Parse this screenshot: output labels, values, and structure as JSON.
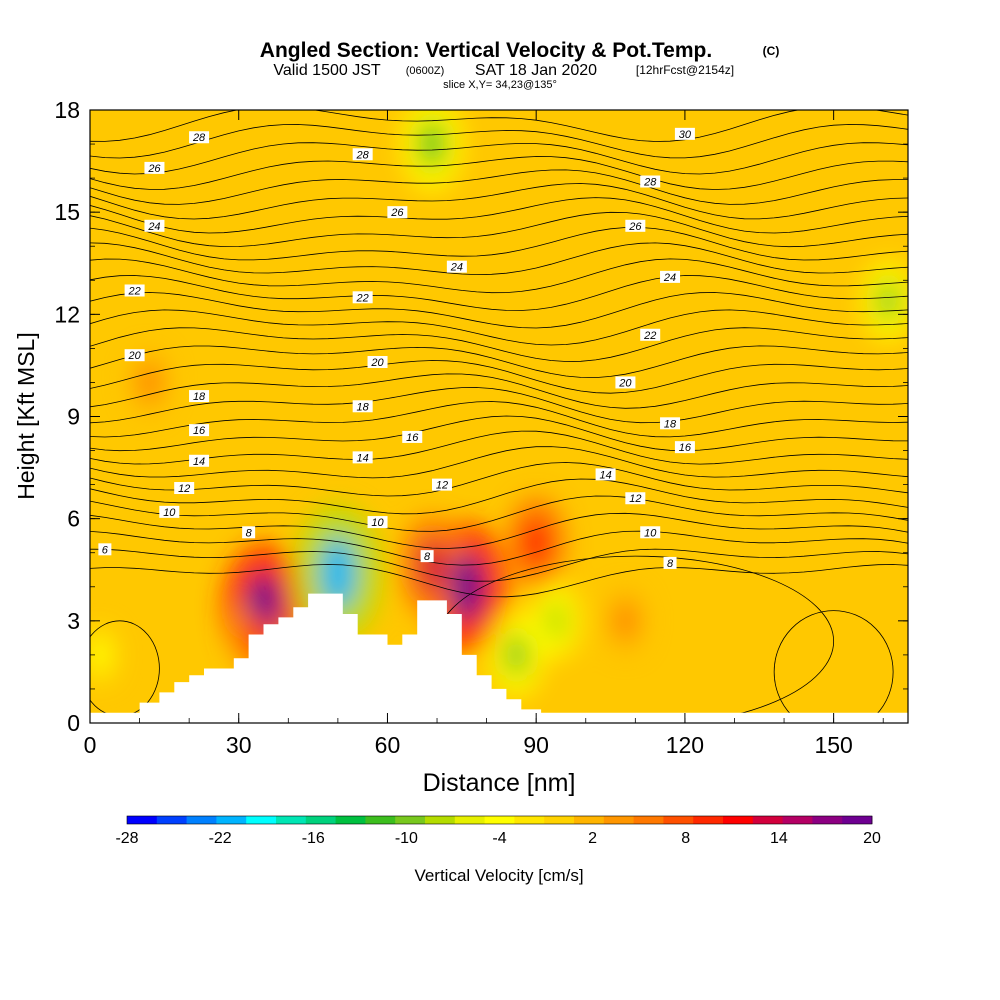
{
  "title": {
    "main": "Angled Section: Vertical Velocity & Pot.Temp.",
    "main_unit": "(C)",
    "valid_a": "Valid 1500 JST",
    "valid_b": "(0600Z)",
    "valid_c": "SAT 18 Jan 2020",
    "valid_d": "[12hrFcst@2154z]",
    "slice": "slice X,Y= 34,23@135°"
  },
  "chart_data": {
    "type": "heatmap",
    "title": "Angled Section: Vertical Velocity & Pot.Temp. (C)",
    "xlabel": "Distance [nm]",
    "ylabel": "Height [Kft MSL]",
    "xlim": [
      0,
      165
    ],
    "ylim": [
      0,
      18
    ],
    "x_ticks": [
      "0",
      "30",
      "60",
      "90",
      "120",
      "150"
    ],
    "y_ticks": [
      "0",
      "3",
      "6",
      "9",
      "12",
      "15",
      "18"
    ],
    "colorbar": {
      "label": "Vertical Velocity [cm/s]",
      "tick_labels": [
        "-28",
        "-22",
        "-16",
        "-10",
        "-4",
        "2",
        "8",
        "14",
        "20"
      ],
      "min": -28,
      "max": 20,
      "colors": [
        "#0000ff",
        "#0040ff",
        "#0080ff",
        "#00b4ff",
        "#00ffff",
        "#00e6b4",
        "#00d27d",
        "#00c040",
        "#3cbe1e",
        "#78c81e",
        "#b4dc00",
        "#e6f000",
        "#ffff00",
        "#ffe600",
        "#ffd200",
        "#ffb400",
        "#ff9600",
        "#ff7800",
        "#ff5000",
        "#ff2800",
        "#ff0000",
        "#d2003c",
        "#b40064",
        "#8c0082",
        "#6e0091"
      ]
    },
    "terrain_profile": {
      "x": [
        0,
        10,
        14,
        17,
        20,
        23,
        29,
        32,
        35,
        38,
        41,
        44,
        48,
        51,
        54,
        57,
        60,
        63,
        66,
        69,
        72,
        75,
        78,
        81,
        84,
        87,
        91,
        165
      ],
      "y": [
        0.3,
        0.6,
        0.9,
        1.2,
        1.4,
        1.6,
        1.9,
        2.6,
        2.9,
        3.1,
        3.4,
        3.8,
        3.8,
        3.2,
        2.6,
        2.6,
        2.3,
        2.6,
        3.6,
        3.6,
        3.2,
        2.0,
        1.4,
        1.0,
        0.7,
        0.4,
        0.3,
        0.3
      ]
    },
    "velocity_features": [
      {
        "x": 35,
        "y": 3.4,
        "value": 20
      },
      {
        "x": 76,
        "y": 4.0,
        "value": 20
      },
      {
        "x": 69,
        "y": 4.6,
        "value": 14
      },
      {
        "x": 90,
        "y": 5.3,
        "value": 12
      },
      {
        "x": 50,
        "y": 4.4,
        "value": -22
      },
      {
        "x": 69,
        "y": 17.0,
        "value": -12
      },
      {
        "x": 86,
        "y": 2.0,
        "value": -10
      },
      {
        "x": 94,
        "y": 3.0,
        "value": -8
      },
      {
        "x": 161,
        "y": 12.4,
        "value": -9
      },
      {
        "x": 2,
        "y": 2.0,
        "value": -4
      },
      {
        "x": 12,
        "y": 10.0,
        "value": 6
      },
      {
        "x": 34,
        "y": 2.6,
        "value": 10
      },
      {
        "x": 108,
        "y": 3.0,
        "value": 6
      }
    ],
    "isotherm_labels": [
      {
        "text": "28",
        "x": 22,
        "y": 17.2
      },
      {
        "text": "28",
        "x": 55,
        "y": 16.7
      },
      {
        "text": "30",
        "x": 120,
        "y": 17.3
      },
      {
        "text": "26",
        "x": 13,
        "y": 16.3
      },
      {
        "text": "26",
        "x": 62,
        "y": 15.0
      },
      {
        "text": "28",
        "x": 113,
        "y": 15.9
      },
      {
        "text": "24",
        "x": 13,
        "y": 14.6
      },
      {
        "text": "26",
        "x": 110,
        "y": 14.6
      },
      {
        "text": "24",
        "x": 74,
        "y": 13.4
      },
      {
        "text": "24",
        "x": 117,
        "y": 13.1
      },
      {
        "text": "22",
        "x": 9,
        "y": 12.7
      },
      {
        "text": "22",
        "x": 55,
        "y": 12.5
      },
      {
        "text": "22",
        "x": 113,
        "y": 11.4
      },
      {
        "text": "20",
        "x": 9,
        "y": 10.8
      },
      {
        "text": "20",
        "x": 58,
        "y": 10.6
      },
      {
        "text": "20",
        "x": 108,
        "y": 10.0
      },
      {
        "text": "18",
        "x": 22,
        "y": 9.6
      },
      {
        "text": "18",
        "x": 55,
        "y": 9.3
      },
      {
        "text": "18",
        "x": 117,
        "y": 8.8
      },
      {
        "text": "16",
        "x": 22,
        "y": 8.6
      },
      {
        "text": "16",
        "x": 65,
        "y": 8.4
      },
      {
        "text": "16",
        "x": 120,
        "y": 8.1
      },
      {
        "text": "14",
        "x": 22,
        "y": 7.7
      },
      {
        "text": "14",
        "x": 55,
        "y": 7.8
      },
      {
        "text": "14",
        "x": 104,
        "y": 7.3
      },
      {
        "text": "12",
        "x": 19,
        "y": 6.9
      },
      {
        "text": "12",
        "x": 71,
        "y": 7.0
      },
      {
        "text": "12",
        "x": 110,
        "y": 6.6
      },
      {
        "text": "10",
        "x": 16,
        "y": 6.2
      },
      {
        "text": "10",
        "x": 58,
        "y": 5.9
      },
      {
        "text": "10",
        "x": 113,
        "y": 5.6
      },
      {
        "text": "8",
        "x": 32,
        "y": 5.6
      },
      {
        "text": "8",
        "x": 68,
        "y": 4.9
      },
      {
        "text": "8",
        "x": 117,
        "y": 4.7
      },
      {
        "text": "6",
        "x": 3,
        "y": 5.1
      }
    ]
  }
}
